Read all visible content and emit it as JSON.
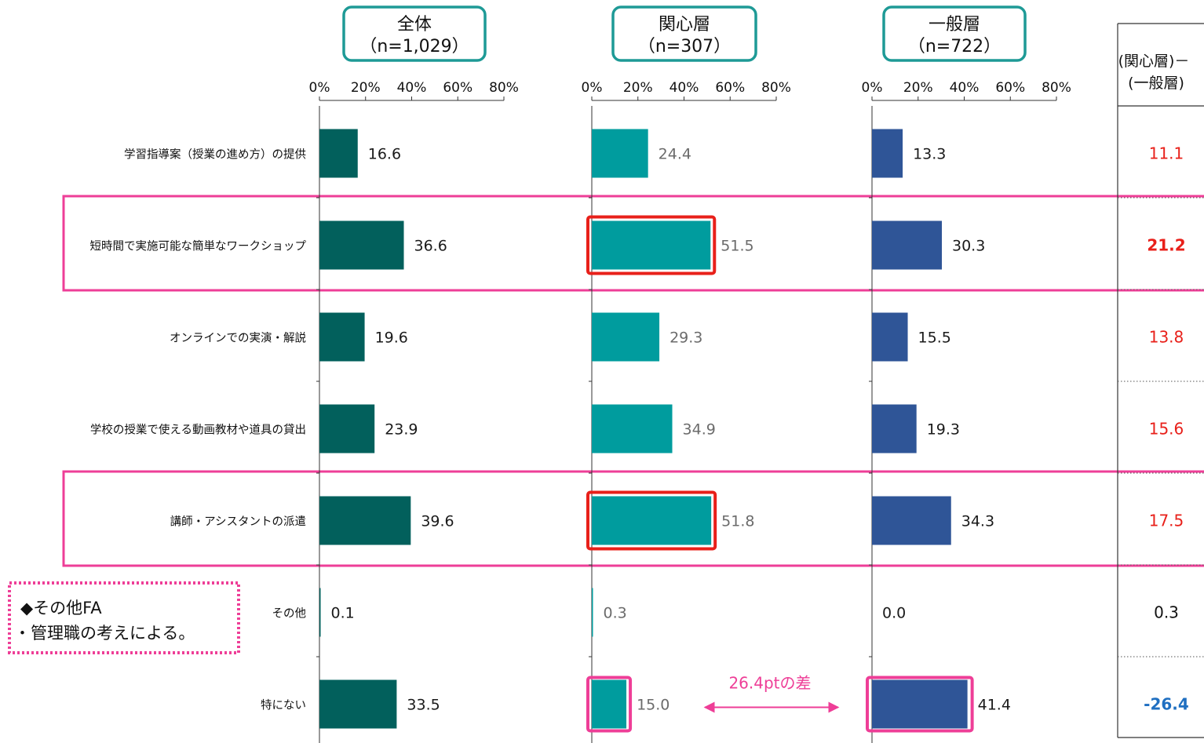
{
  "colors": {
    "all": "#02605C",
    "interested": "#009C9E",
    "general": "#2F5597",
    "header_border": "#1E9A96",
    "highlight_pink": "#EE3E97",
    "highlight_red": "#E8201A",
    "positive_diff": "#E8201A",
    "negative_diff": "#1F6FC1",
    "note_border": "#EE3E97"
  },
  "chart_data": {
    "type": "bar",
    "orientation": "horizontal",
    "categories": [
      "学習指導案（授業の進め方）の提供",
      "短時間で実施可能な簡単なワークショップ",
      "オンラインでの実演・解説",
      "学校の授業で使える動画教材や道具の貸出",
      "講師・アシスタントの派遣",
      "その他",
      "特にない"
    ],
    "xlim": [
      0,
      80
    ],
    "ticks": [
      "0%",
      "20%",
      "40%",
      "60%",
      "80%"
    ],
    "series": [
      {
        "name": "全体",
        "n_label": "（n=1,029）",
        "values": [
          16.6,
          36.6,
          19.6,
          23.9,
          39.6,
          0.1,
          33.5
        ],
        "labels": [
          "16.6",
          "36.6",
          "19.6",
          "23.9",
          "39.6",
          "0.1",
          "33.5"
        ]
      },
      {
        "name": "関心層",
        "n_label": "（n=307）",
        "values": [
          24.4,
          51.5,
          29.3,
          34.9,
          51.8,
          0.3,
          15.0
        ],
        "labels": [
          "24.4",
          "51.5",
          "29.3",
          "34.9",
          "51.8",
          "0.3",
          "15.0"
        ]
      },
      {
        "name": "一般層",
        "n_label": "（n=722）",
        "values": [
          13.3,
          30.3,
          15.5,
          19.3,
          34.3,
          0.0,
          41.4
        ],
        "labels": [
          "13.3",
          "30.3",
          "15.5",
          "19.3",
          "34.3",
          "0.0",
          "41.4"
        ]
      }
    ],
    "difference": {
      "header_line1": "(関心層)－",
      "header_line2": "(一般層)",
      "values": [
        "11.1",
        "21.2",
        "13.8",
        "15.6",
        "17.5",
        "0.3",
        "-26.4"
      ],
      "bold": [
        false,
        true,
        false,
        false,
        false,
        false,
        true
      ],
      "tone": [
        "positive",
        "positive",
        "positive",
        "positive",
        "positive",
        "neutral",
        "negative"
      ]
    },
    "highlighted_rows": [
      1,
      4
    ],
    "annotation": "26.4ptの差"
  },
  "note": {
    "line1": "◆その他FA",
    "line2": "・管理職の考えによる。"
  }
}
